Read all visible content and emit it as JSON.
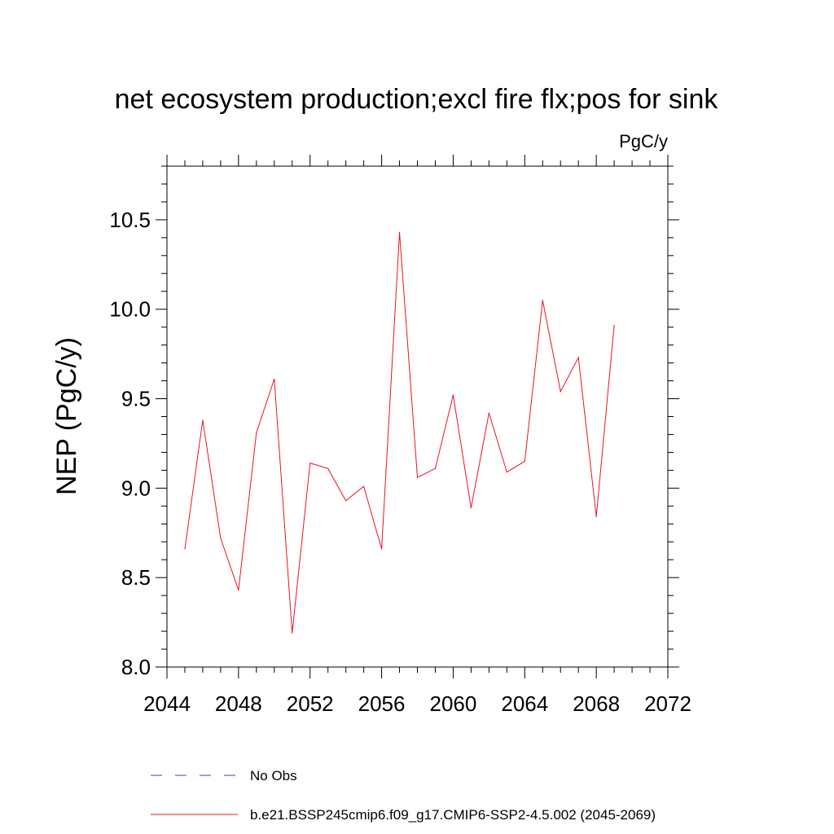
{
  "chart_data": {
    "type": "line",
    "title": "net ecosystem production;excl fire flx;pos for sink",
    "units_label": "PgC/y",
    "ylabel": "NEP  (PgC/y)",
    "xlabel": "",
    "xlim": [
      2044,
      2072
    ],
    "ylim": [
      8.0,
      10.8
    ],
    "x_ticks": [
      2044,
      2048,
      2052,
      2056,
      2060,
      2064,
      2068,
      2072
    ],
    "x_tick_labels": [
      "2044",
      "2048",
      "2052",
      "2056",
      "2060",
      "2064",
      "2068",
      "2072"
    ],
    "y_ticks": [
      8.0,
      8.5,
      9.0,
      9.5,
      10.0,
      10.5
    ],
    "y_tick_labels": [
      "8.0",
      "8.5",
      "9.0",
      "9.5",
      "10.0",
      "10.5"
    ],
    "grid": false,
    "legend_placement": "bottom",
    "series": [
      {
        "name": "No Obs",
        "color": "#4b3fa0",
        "dash": "dashed",
        "x": [],
        "values": []
      },
      {
        "name": "b.e21.BSSP245cmip6.f09_g17.CMIP6-SSP2-4.5.002 (2045-2069)",
        "color": "#e8141e",
        "dash": "solid",
        "x": [
          2045,
          2046,
          2047,
          2048,
          2049,
          2050,
          2051,
          2052,
          2053,
          2054,
          2055,
          2056,
          2057,
          2058,
          2059,
          2060,
          2061,
          2062,
          2063,
          2064,
          2065,
          2066,
          2067,
          2068,
          2069
        ],
        "values": [
          8.66,
          9.38,
          8.72,
          8.43,
          9.31,
          9.61,
          8.19,
          9.14,
          9.11,
          8.93,
          9.01,
          8.66,
          10.43,
          9.06,
          9.11,
          9.52,
          8.89,
          9.42,
          9.09,
          9.15,
          10.05,
          9.54,
          9.73,
          8.84,
          9.91
        ]
      }
    ]
  }
}
